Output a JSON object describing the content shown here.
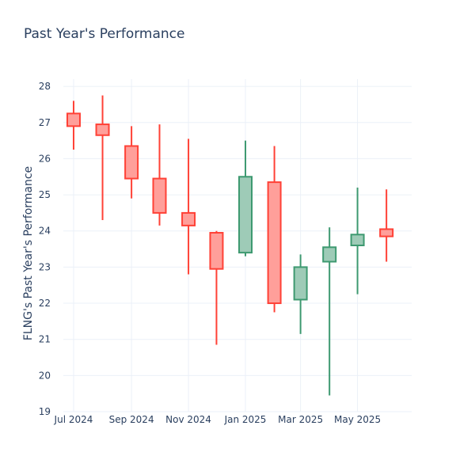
{
  "chart_data": {
    "type": "candlestick",
    "title": "Past Year's Performance",
    "ylabel": "FLNG's Past Year's Performance",
    "xlabel": "",
    "ylim": [
      19,
      28.2
    ],
    "xlim": [
      "2024-06-20",
      "2025-06-28"
    ],
    "yticks": [
      19,
      20,
      21,
      22,
      23,
      24,
      25,
      26,
      27,
      28
    ],
    "xticks": [
      {
        "date": "2024-07-01",
        "label": "Jul 2024"
      },
      {
        "date": "2024-09-01",
        "label": "Sep 2024"
      },
      {
        "date": "2024-11-01",
        "label": "Nov 2024"
      },
      {
        "date": "2025-01-01",
        "label": "Jan 2025"
      },
      {
        "date": "2025-03-01",
        "label": "Mar 2025"
      },
      {
        "date": "2025-05-01",
        "label": "May 2025"
      }
    ],
    "grid": true,
    "increasing_color": "#3d9970",
    "increasing_fill": "#9ecbb7",
    "decreasing_color": "#ff4136",
    "decreasing_fill": "#ff9f9a",
    "candles": [
      {
        "date": "2024-07-01",
        "open": 27.25,
        "high": 27.6,
        "low": 26.25,
        "close": 26.9
      },
      {
        "date": "2024-08-01",
        "open": 26.95,
        "high": 27.75,
        "low": 24.3,
        "close": 26.65
      },
      {
        "date": "2024-09-01",
        "open": 26.35,
        "high": 26.9,
        "low": 24.9,
        "close": 25.45
      },
      {
        "date": "2024-10-01",
        "open": 25.45,
        "high": 26.95,
        "low": 24.15,
        "close": 24.5
      },
      {
        "date": "2024-11-01",
        "open": 24.5,
        "high": 26.55,
        "low": 22.8,
        "close": 24.15
      },
      {
        "date": "2024-12-01",
        "open": 23.95,
        "high": 24.0,
        "low": 20.85,
        "close": 22.95
      },
      {
        "date": "2025-01-01",
        "open": 23.4,
        "high": 26.5,
        "low": 23.3,
        "close": 25.5
      },
      {
        "date": "2025-02-01",
        "open": 25.35,
        "high": 26.35,
        "low": 21.75,
        "close": 22.0
      },
      {
        "date": "2025-03-01",
        "open": 22.1,
        "high": 23.35,
        "low": 21.15,
        "close": 23.0
      },
      {
        "date": "2025-04-01",
        "open": 23.15,
        "high": 24.1,
        "low": 19.45,
        "close": 23.55
      },
      {
        "date": "2025-05-01",
        "open": 23.6,
        "high": 25.2,
        "low": 22.25,
        "close": 23.9
      },
      {
        "date": "2025-06-01",
        "open": 24.05,
        "high": 25.15,
        "low": 23.15,
        "close": 23.85
      }
    ]
  }
}
